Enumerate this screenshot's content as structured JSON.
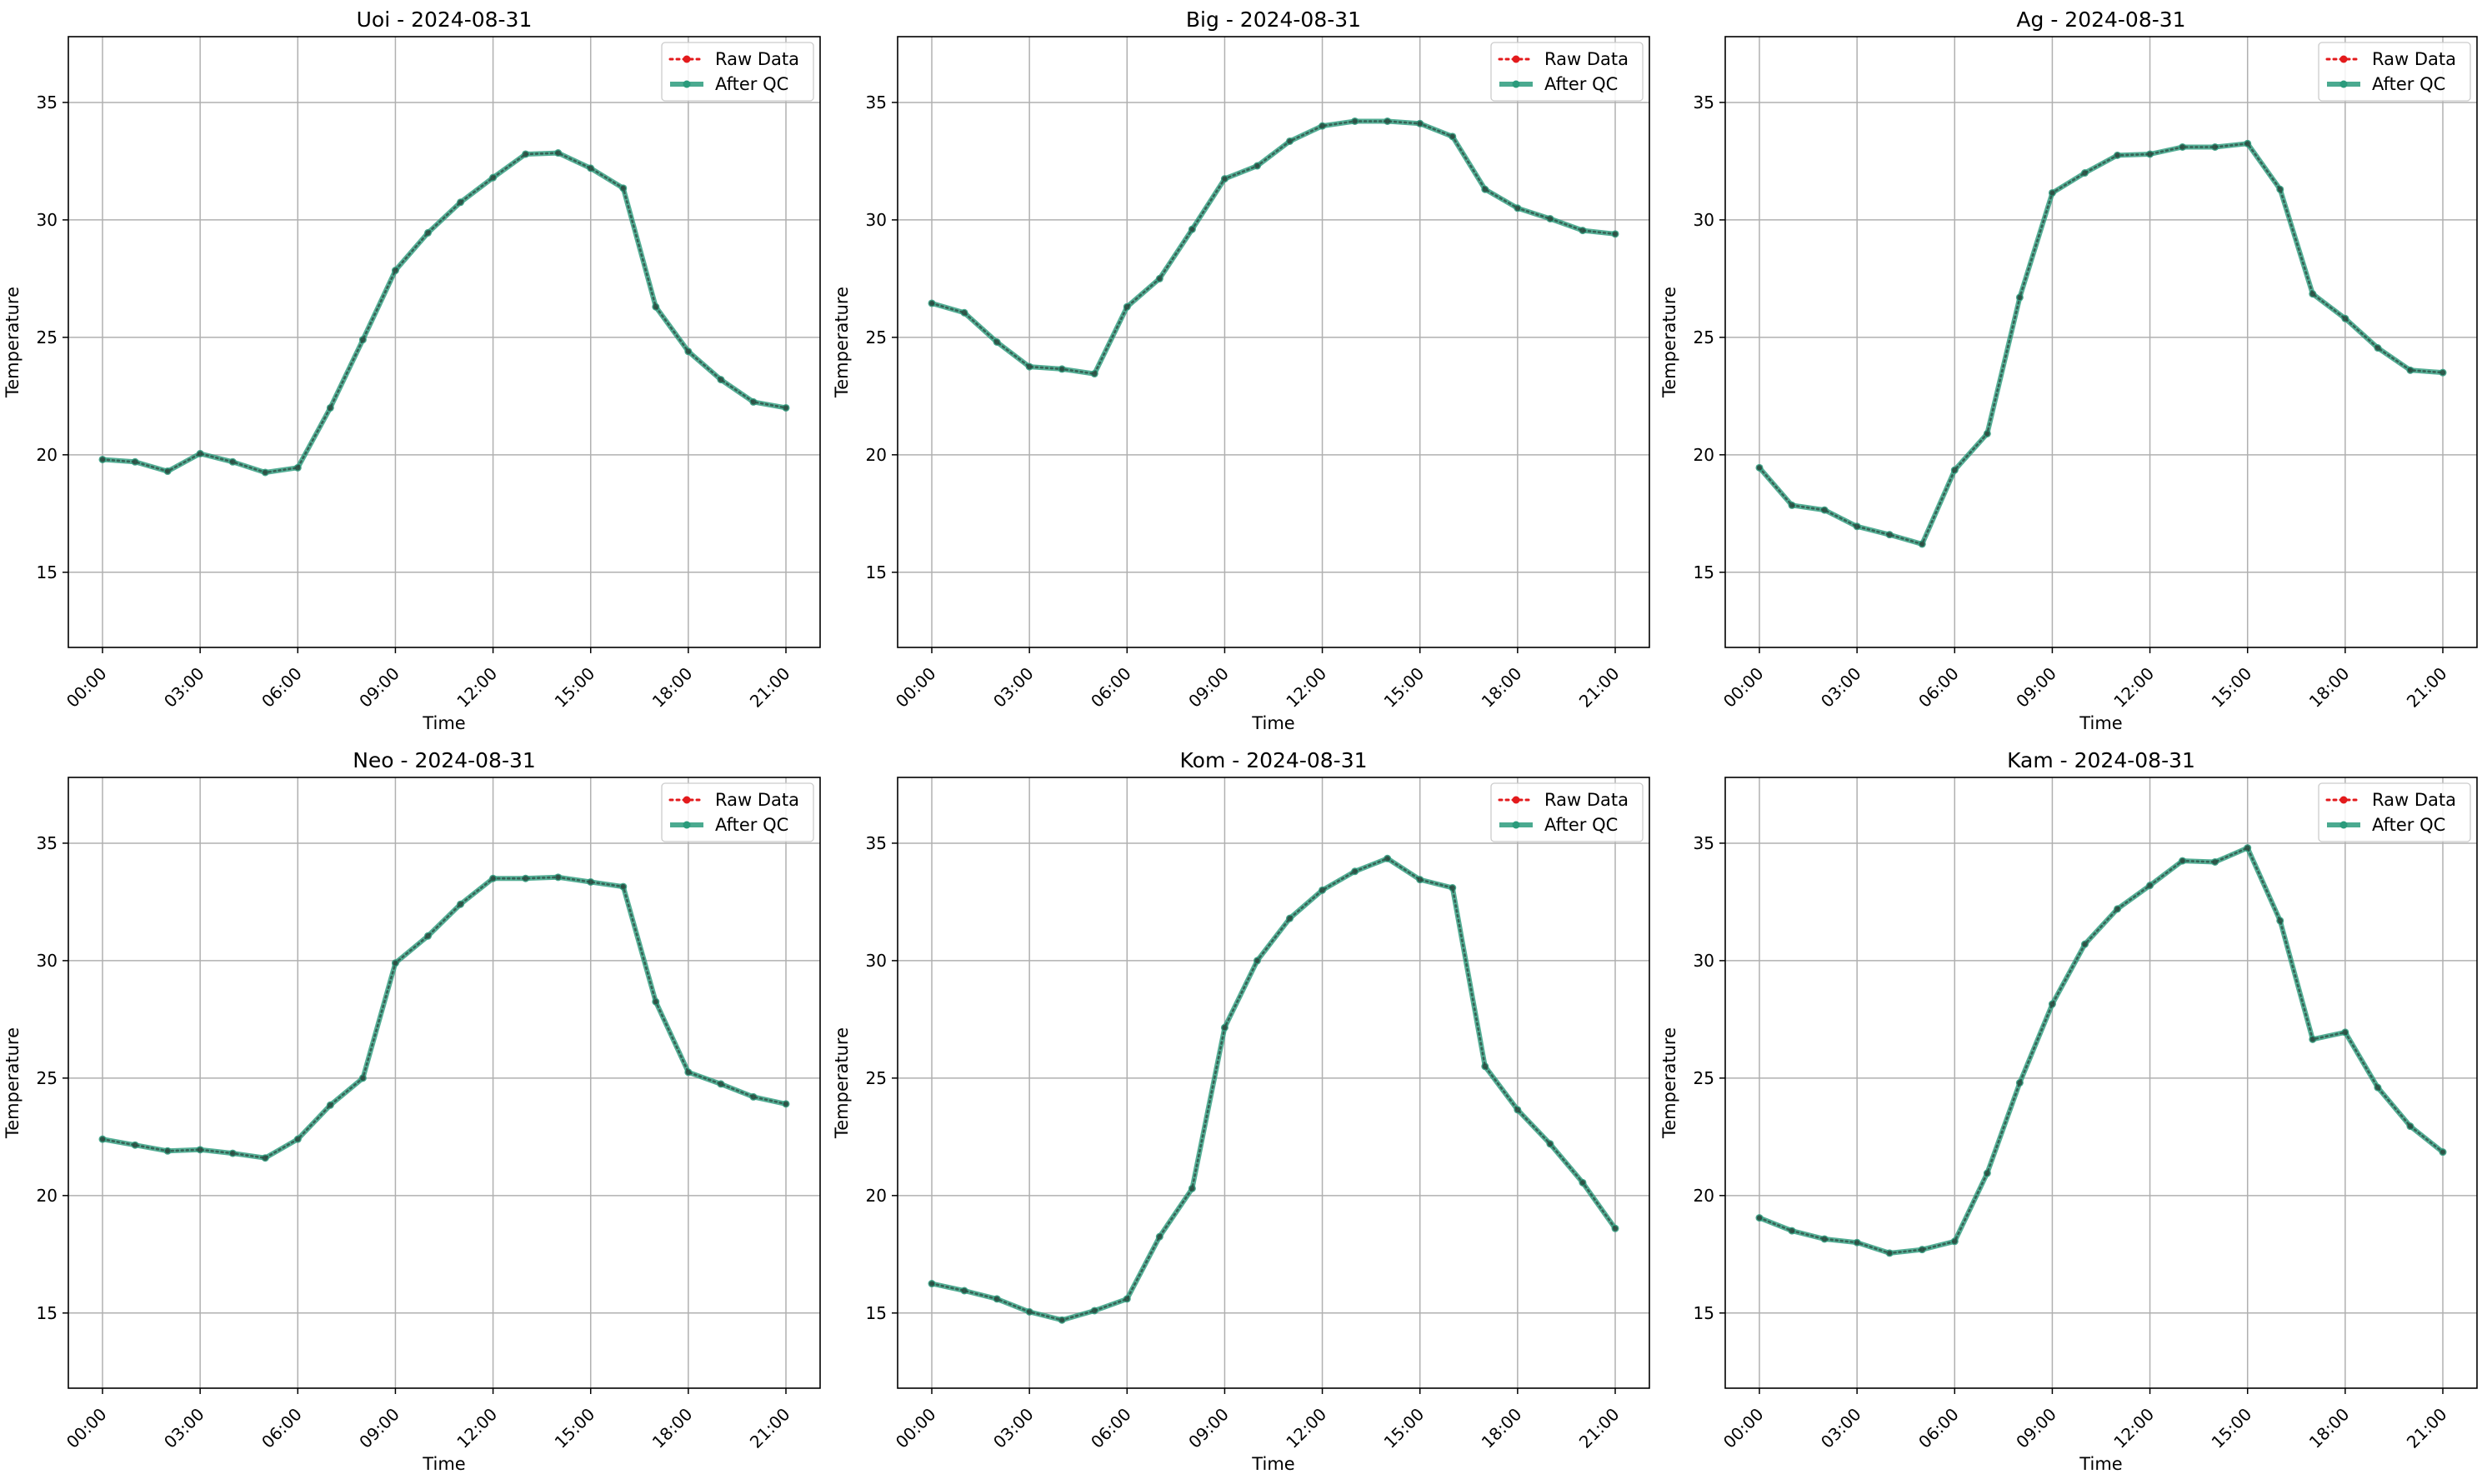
{
  "chart_data": [
    {
      "type": "line",
      "title": "Uoi - 2024-08-31",
      "xlabel": "Time",
      "ylabel": "Temperature",
      "xticks": [
        "00:00",
        "03:00",
        "06:00",
        "09:00",
        "12:00",
        "15:00",
        "18:00",
        "21:00"
      ],
      "yticks": [
        15,
        20,
        25,
        30,
        35
      ],
      "xlim": [
        -1.05,
        22.05
      ],
      "ylim": [
        11.8,
        37.8
      ],
      "grid": true,
      "legend_position": "top-right",
      "x": [
        0,
        1,
        2,
        3,
        4,
        5,
        6,
        7,
        8,
        9,
        10,
        11,
        12,
        13,
        14,
        15,
        16,
        17,
        18,
        19,
        20,
        21
      ],
      "series": [
        {
          "name": "Raw Data",
          "style": "dotted",
          "color": "#e31a1c",
          "values": [
            19.8,
            19.7,
            19.3,
            20.05,
            19.7,
            19.25,
            19.45,
            22.0,
            24.9,
            27.85,
            29.45,
            30.75,
            31.8,
            32.8,
            32.85,
            32.2,
            31.35,
            26.3,
            24.4,
            23.2,
            22.25,
            22.0
          ]
        },
        {
          "name": "After QC",
          "style": "solid",
          "color": "#2b9b7c",
          "values": [
            19.8,
            19.7,
            19.3,
            20.05,
            19.7,
            19.25,
            19.45,
            22.0,
            24.9,
            27.85,
            29.45,
            30.75,
            31.8,
            32.8,
            32.85,
            32.2,
            31.35,
            26.3,
            24.4,
            23.2,
            22.25,
            22.0
          ]
        }
      ]
    },
    {
      "type": "line",
      "title": "Big - 2024-08-31",
      "xlabel": "Time",
      "ylabel": "Temperature",
      "xticks": [
        "00:00",
        "03:00",
        "06:00",
        "09:00",
        "12:00",
        "15:00",
        "18:00",
        "21:00"
      ],
      "yticks": [
        15,
        20,
        25,
        30,
        35
      ],
      "xlim": [
        -1.05,
        22.05
      ],
      "ylim": [
        11.8,
        37.8
      ],
      "grid": true,
      "legend_position": "top-right",
      "x": [
        0,
        1,
        2,
        3,
        4,
        5,
        6,
        7,
        8,
        9,
        10,
        11,
        12,
        13,
        14,
        15,
        16,
        17,
        18,
        19,
        20,
        21
      ],
      "series": [
        {
          "name": "Raw Data",
          "style": "dotted",
          "color": "#e31a1c",
          "values": [
            26.45,
            26.05,
            24.8,
            23.75,
            23.65,
            23.45,
            26.3,
            27.5,
            29.6,
            31.75,
            32.3,
            33.35,
            34.0,
            34.2,
            34.2,
            34.1,
            33.55,
            31.3,
            30.5,
            30.05,
            29.55,
            29.4
          ]
        },
        {
          "name": "After QC",
          "style": "solid",
          "color": "#2b9b7c",
          "values": [
            26.45,
            26.05,
            24.8,
            23.75,
            23.65,
            23.45,
            26.3,
            27.5,
            29.6,
            31.75,
            32.3,
            33.35,
            34.0,
            34.2,
            34.2,
            34.1,
            33.55,
            31.3,
            30.5,
            30.05,
            29.55,
            29.4
          ]
        }
      ]
    },
    {
      "type": "line",
      "title": "Ag - 2024-08-31",
      "xlabel": "Time",
      "ylabel": "Temperature",
      "xticks": [
        "00:00",
        "03:00",
        "06:00",
        "09:00",
        "12:00",
        "15:00",
        "18:00",
        "21:00"
      ],
      "yticks": [
        15,
        20,
        25,
        30,
        35
      ],
      "xlim": [
        -1.05,
        22.05
      ],
      "ylim": [
        11.8,
        37.8
      ],
      "grid": true,
      "legend_position": "top-right",
      "x": [
        0,
        1,
        2,
        3,
        4,
        5,
        6,
        7,
        8,
        9,
        10,
        11,
        12,
        13,
        14,
        15,
        16,
        17,
        18,
        19,
        20,
        21
      ],
      "series": [
        {
          "name": "Raw Data",
          "style": "dotted",
          "color": "#e31a1c",
          "values": [
            19.45,
            17.85,
            17.65,
            16.95,
            16.6,
            16.2,
            19.35,
            20.9,
            26.7,
            31.15,
            32.0,
            32.75,
            32.8,
            33.1,
            33.1,
            33.25,
            31.3,
            26.85,
            25.8,
            24.55,
            23.6,
            23.5
          ]
        },
        {
          "name": "After QC",
          "style": "solid",
          "color": "#2b9b7c",
          "values": [
            19.45,
            17.85,
            17.65,
            16.95,
            16.6,
            16.2,
            19.35,
            20.9,
            26.7,
            31.15,
            32.0,
            32.75,
            32.8,
            33.1,
            33.1,
            33.25,
            31.3,
            26.85,
            25.8,
            24.55,
            23.6,
            23.5
          ]
        }
      ]
    },
    {
      "type": "line",
      "title": "Neo - 2024-08-31",
      "xlabel": "Time",
      "ylabel": "Temperature",
      "xticks": [
        "00:00",
        "03:00",
        "06:00",
        "09:00",
        "12:00",
        "15:00",
        "18:00",
        "21:00"
      ],
      "yticks": [
        15,
        20,
        25,
        30,
        35
      ],
      "xlim": [
        -1.05,
        22.05
      ],
      "ylim": [
        11.8,
        37.8
      ],
      "grid": true,
      "legend_position": "top-right",
      "x": [
        0,
        1,
        2,
        3,
        4,
        5,
        6,
        7,
        8,
        9,
        10,
        11,
        12,
        13,
        14,
        15,
        16,
        17,
        18,
        19,
        20,
        21
      ],
      "series": [
        {
          "name": "Raw Data",
          "style": "dotted",
          "color": "#e31a1c",
          "values": [
            22.4,
            22.15,
            21.9,
            21.95,
            21.8,
            21.6,
            22.4,
            23.85,
            25.0,
            29.9,
            31.05,
            32.4,
            33.5,
            33.5,
            33.55,
            33.35,
            33.15,
            28.25,
            25.25,
            24.75,
            24.2,
            23.9
          ]
        },
        {
          "name": "After QC",
          "style": "solid",
          "color": "#2b9b7c",
          "values": [
            22.4,
            22.15,
            21.9,
            21.95,
            21.8,
            21.6,
            22.4,
            23.85,
            25.0,
            29.9,
            31.05,
            32.4,
            33.5,
            33.5,
            33.55,
            33.35,
            33.15,
            28.25,
            25.25,
            24.75,
            24.2,
            23.9
          ]
        }
      ]
    },
    {
      "type": "line",
      "title": "Kom - 2024-08-31",
      "xlabel": "Time",
      "ylabel": "Temperature",
      "xticks": [
        "00:00",
        "03:00",
        "06:00",
        "09:00",
        "12:00",
        "15:00",
        "18:00",
        "21:00"
      ],
      "yticks": [
        15,
        20,
        25,
        30,
        35
      ],
      "xlim": [
        -1.05,
        22.05
      ],
      "ylim": [
        11.8,
        37.8
      ],
      "grid": true,
      "legend_position": "top-right",
      "x": [
        0,
        1,
        2,
        3,
        4,
        5,
        6,
        7,
        8,
        9,
        10,
        11,
        12,
        13,
        14,
        15,
        16,
        17,
        18,
        19,
        20,
        21
      ],
      "series": [
        {
          "name": "Raw Data",
          "style": "dotted",
          "color": "#e31a1c",
          "values": [
            16.25,
            15.95,
            15.6,
            15.05,
            14.7,
            15.1,
            15.6,
            18.25,
            20.3,
            27.15,
            30.0,
            31.8,
            33.0,
            33.8,
            34.35,
            33.45,
            33.1,
            25.5,
            23.65,
            22.2,
            20.55,
            18.6
          ]
        },
        {
          "name": "After QC",
          "style": "solid",
          "color": "#2b9b7c",
          "values": [
            16.25,
            15.95,
            15.6,
            15.05,
            14.7,
            15.1,
            15.6,
            18.25,
            20.3,
            27.15,
            30.0,
            31.8,
            33.0,
            33.8,
            34.35,
            33.45,
            33.1,
            25.5,
            23.65,
            22.2,
            20.55,
            18.6
          ]
        }
      ]
    },
    {
      "type": "line",
      "title": "Kam - 2024-08-31",
      "xlabel": "Time",
      "ylabel": "Temperature",
      "xticks": [
        "00:00",
        "03:00",
        "06:00",
        "09:00",
        "12:00",
        "15:00",
        "18:00",
        "21:00"
      ],
      "yticks": [
        15,
        20,
        25,
        30,
        35
      ],
      "xlim": [
        -1.05,
        22.05
      ],
      "ylim": [
        11.8,
        37.8
      ],
      "grid": true,
      "legend_position": "top-right",
      "x": [
        0,
        1,
        2,
        3,
        4,
        5,
        6,
        7,
        8,
        9,
        10,
        11,
        12,
        13,
        14,
        15,
        16,
        17,
        18,
        19,
        20,
        21
      ],
      "series": [
        {
          "name": "Raw Data",
          "style": "dotted",
          "color": "#e31a1c",
          "values": [
            19.05,
            18.5,
            18.15,
            18.0,
            17.55,
            17.7,
            18.05,
            20.95,
            24.8,
            28.15,
            30.7,
            32.2,
            33.2,
            34.25,
            34.2,
            34.8,
            31.7,
            26.65,
            26.95,
            24.6,
            22.95,
            21.85
          ]
        },
        {
          "name": "After QC",
          "style": "solid",
          "color": "#2b9b7c",
          "values": [
            19.05,
            18.5,
            18.15,
            18.0,
            17.55,
            17.7,
            18.05,
            20.95,
            24.8,
            28.15,
            30.7,
            32.2,
            33.2,
            34.25,
            34.2,
            34.8,
            31.7,
            26.65,
            26.95,
            24.6,
            22.95,
            21.85
          ]
        }
      ]
    }
  ]
}
